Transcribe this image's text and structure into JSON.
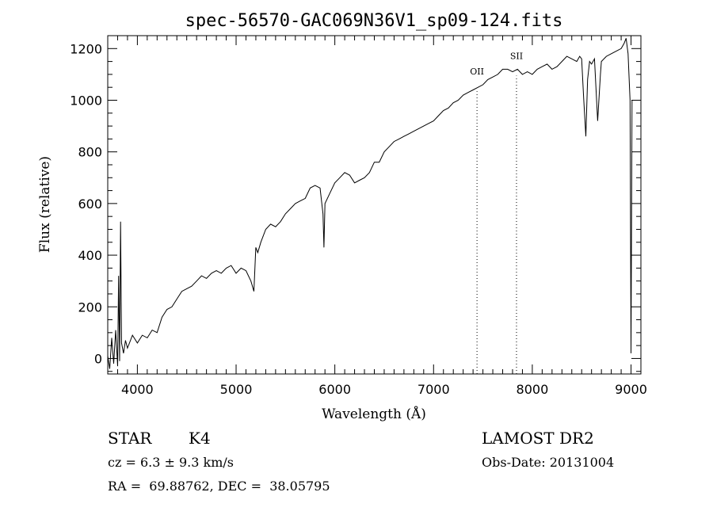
{
  "chart_data": {
    "type": "line",
    "title": "spec-56570-GAC069N36V1_sp09-124.fits",
    "xlabel": "Wavelength (Å)",
    "ylabel": "Flux (relative)",
    "xlim": [
      3700,
      9100
    ],
    "ylim": [
      -60,
      1250
    ],
    "xticks": [
      4000,
      5000,
      6000,
      7000,
      8000,
      9000
    ],
    "yticks": [
      0,
      200,
      400,
      600,
      800,
      1000,
      1200
    ],
    "line_markers": [
      {
        "label": "OII",
        "x": 7440
      },
      {
        "label": "SII",
        "x": 7840
      }
    ],
    "series": [
      {
        "x": [
          3700,
          3720,
          3740,
          3760,
          3780,
          3800,
          3810,
          3820,
          3830,
          3840,
          3860,
          3880,
          3900,
          3950,
          4000,
          4050,
          4100,
          4150,
          4200,
          4250,
          4300,
          4350,
          4400,
          4450,
          4500,
          4550,
          4600,
          4650,
          4700,
          4750,
          4800,
          4850,
          4900,
          4950,
          5000,
          5050,
          5100,
          5150,
          5180,
          5200,
          5220,
          5250,
          5300,
          5350,
          5400,
          5450,
          5500,
          5550,
          5600,
          5650,
          5700,
          5750,
          5800,
          5850,
          5880,
          5890,
          5900,
          5950,
          6000,
          6050,
          6100,
          6150,
          6200,
          6250,
          6300,
          6350,
          6400,
          6450,
          6500,
          6550,
          6600,
          6650,
          6700,
          6750,
          6800,
          6850,
          6900,
          6950,
          7000,
          7050,
          7100,
          7150,
          7200,
          7250,
          7300,
          7350,
          7400,
          7450,
          7500,
          7550,
          7600,
          7650,
          7700,
          7750,
          7800,
          7850,
          7900,
          7950,
          8000,
          8050,
          8100,
          8150,
          8200,
          8250,
          8300,
          8350,
          8400,
          8450,
          8480,
          8500,
          8520,
          8542,
          8560,
          8580,
          8600,
          8630,
          8662,
          8690,
          8700,
          8750,
          8800,
          8850,
          8900,
          8930,
          8950,
          8970,
          8990,
          9000,
          9010
        ],
        "y": [
          10,
          -40,
          80,
          -20,
          110,
          -30,
          320,
          -10,
          530,
          60,
          20,
          70,
          40,
          90,
          60,
          90,
          80,
          110,
          100,
          160,
          190,
          200,
          230,
          260,
          270,
          280,
          300,
          320,
          310,
          330,
          340,
          330,
          350,
          360,
          330,
          350,
          340,
          300,
          260,
          430,
          410,
          450,
          500,
          520,
          510,
          530,
          560,
          580,
          600,
          610,
          620,
          660,
          670,
          660,
          560,
          430,
          600,
          640,
          680,
          700,
          720,
          710,
          680,
          690,
          700,
          720,
          760,
          760,
          800,
          820,
          840,
          850,
          860,
          870,
          880,
          890,
          900,
          910,
          920,
          940,
          960,
          970,
          990,
          1000,
          1020,
          1030,
          1040,
          1050,
          1060,
          1080,
          1090,
          1100,
          1120,
          1120,
          1110,
          1120,
          1100,
          1110,
          1100,
          1120,
          1130,
          1140,
          1120,
          1130,
          1150,
          1170,
          1160,
          1150,
          1170,
          1160,
          1010,
          860,
          1080,
          1150,
          1140,
          1160,
          920,
          1100,
          1150,
          1170,
          1180,
          1190,
          1200,
          1220,
          1240,
          1180,
          1000,
          20,
          1000
        ]
      }
    ]
  },
  "info": {
    "object_type": "STAR",
    "subclass": "K4",
    "survey": "LAMOST DR2",
    "cz": "cz = 6.3 ± 9.3 km/s",
    "obs_date": "Obs-Date: 20131004",
    "coords": "RA =  69.88762, DEC =  38.05795"
  }
}
